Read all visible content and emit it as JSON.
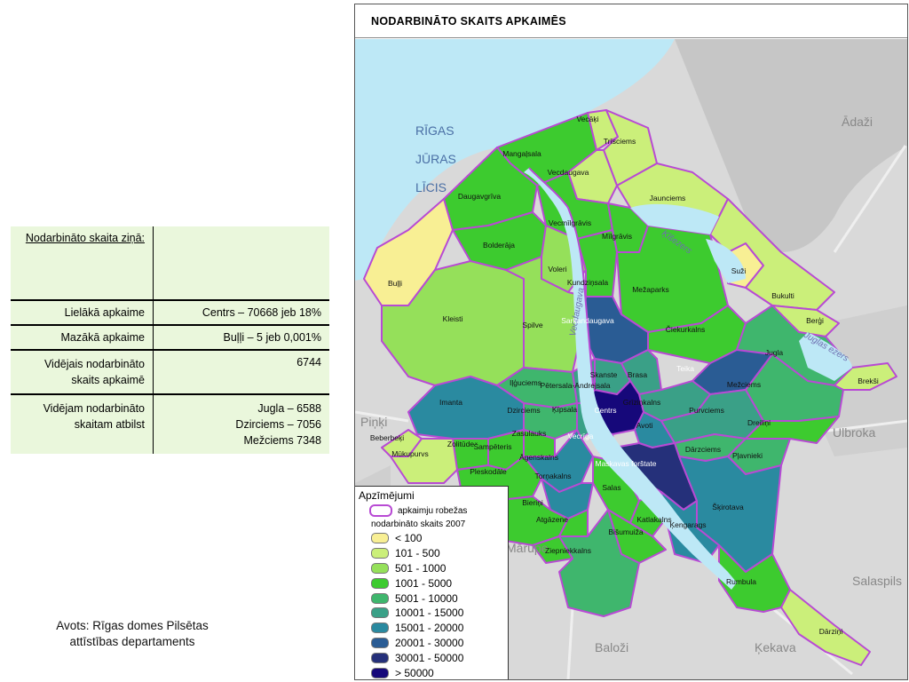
{
  "table": {
    "header_label": "Nodarbināto skaita ziņā:",
    "rows": [
      {
        "label": "Lielākā apkaime",
        "value": "Centrs – 70668 jeb 18%"
      },
      {
        "label": "Mazākā apkaime",
        "value": "Buļļi – 5 jeb 0,001%"
      },
      {
        "label": "Vidējais nodarbināto skaits apkaimē",
        "value": "6744"
      },
      {
        "label": "Vidējam nodarbināto skaitam atbilst",
        "values": [
          "Jugla – 6588",
          "Dzirciems – 7056",
          "Mežciems 7348"
        ]
      }
    ]
  },
  "source_note": "Avots: Rīgas domes Pilsētas attīstības departaments",
  "map": {
    "title": "NODARBINĀTO SKAITS APKAIMĒS",
    "water_label": [
      "RĪGAS",
      "JŪRAS",
      "LĪCIS"
    ],
    "river_labels": [
      "Vecdaugava",
      "Ķīšezers",
      "Juglas ezers"
    ],
    "place_labels": [
      "Ādaži",
      "Piņķi",
      "Ulbroka",
      "Salaspils",
      "Ķekava",
      "Baloži",
      "Mārupe"
    ],
    "district_labels": [
      {
        "name": "Vecāķi",
        "class": 1
      },
      {
        "name": "Mangaļsala",
        "class": 3
      },
      {
        "name": "Trīsciems",
        "class": 1
      },
      {
        "name": "Vecdaugava",
        "class": 1
      },
      {
        "name": "Daugavgrīva",
        "class": 3
      },
      {
        "name": "Jaunciems",
        "class": 1
      },
      {
        "name": "Vecmīlgrāvis",
        "class": 3
      },
      {
        "name": "Mīlgrāvis",
        "class": 3
      },
      {
        "name": "Bolderāja",
        "class": 3
      },
      {
        "name": "Buļļi",
        "class": 0
      },
      {
        "name": "Voleri",
        "class": 2
      },
      {
        "name": "Kundziņsala",
        "class": 3
      },
      {
        "name": "Mežaparks",
        "class": 3
      },
      {
        "name": "Suži",
        "class": 0
      },
      {
        "name": "Bukulti",
        "class": 1
      },
      {
        "name": "Kleisti",
        "class": 2
      },
      {
        "name": "Spilve",
        "class": 2
      },
      {
        "name": "Sarkandaugava",
        "class": 7
      },
      {
        "name": "Čiekurkalns",
        "class": 3
      },
      {
        "name": "Berģi",
        "class": 1
      },
      {
        "name": "Jugla",
        "class": 4
      },
      {
        "name": "Teika",
        "class": 7
      },
      {
        "name": "Brekši",
        "class": 1
      },
      {
        "name": "Skanste",
        "class": 5
      },
      {
        "name": "Brasa",
        "class": 5
      },
      {
        "name": "Iļģuciems",
        "class": 4
      },
      {
        "name": "Pētersala-Andrejsala",
        "class": 5
      },
      {
        "name": "Mežciems",
        "class": 4
      },
      {
        "name": "Imanta",
        "class": 6
      },
      {
        "name": "Grīziņkalns",
        "class": 5
      },
      {
        "name": "Dzirciems",
        "class": 4
      },
      {
        "name": "Ķīpsala",
        "class": 5
      },
      {
        "name": "Centrs",
        "class": 9
      },
      {
        "name": "Avoti",
        "class": 6
      },
      {
        "name": "Purvciems",
        "class": 5
      },
      {
        "name": "Dreiliņi",
        "class": 3
      },
      {
        "name": "Zasulauks",
        "class": 3
      },
      {
        "name": "Vecrīga",
        "class": 8
      },
      {
        "name": "Beberbeķi",
        "class": 1
      },
      {
        "name": "Zolitūde",
        "class": 3
      },
      {
        "name": "Šampēteris",
        "class": 3
      },
      {
        "name": "Āgenskalns",
        "class": 6
      },
      {
        "name": "Dārzciems",
        "class": 4
      },
      {
        "name": "Pļavnieki",
        "class": 4
      },
      {
        "name": "Mūkupurvs",
        "class": 1
      },
      {
        "name": "Pleskodāle",
        "class": 3
      },
      {
        "name": "Torņakalns",
        "class": 6
      },
      {
        "name": "Maskavas forštate",
        "class": 8
      },
      {
        "name": "Salas",
        "class": 3
      },
      {
        "name": "Šķirotava",
        "class": 6
      },
      {
        "name": "Bieriņi",
        "class": 3
      },
      {
        "name": "Atgāzene",
        "class": 3
      },
      {
        "name": "Katlakalns",
        "class": 3
      },
      {
        "name": "Ķengarags",
        "class": 6
      },
      {
        "name": "Bišumuiža",
        "class": 3
      },
      {
        "name": "Ziepniekkalns",
        "class": 4
      },
      {
        "name": "Rumbula",
        "class": 3
      },
      {
        "name": "Dārziņi",
        "class": 1
      }
    ]
  },
  "legend": {
    "title": "Apzīmējumi",
    "boundary_label": "apkaimju robežas",
    "subtitle": "nodarbināto skaits 2007",
    "classes": [
      {
        "label": "< 100",
        "color": "#f8ef94"
      },
      {
        "label": "101 - 500",
        "color": "#cbef7a"
      },
      {
        "label": "501 - 1000",
        "color": "#95e05a"
      },
      {
        "label": "1001 - 5000",
        "color": "#3dcb2f"
      },
      {
        "label": "5001 - 10000",
        "color": "#3fb66d"
      },
      {
        "label": "10001 - 15000",
        "color": "#3aa087"
      },
      {
        "label": "15001 - 20000",
        "color": "#2a8aa0"
      },
      {
        "label": "20001 - 30000",
        "color": "#2a5c94"
      },
      {
        "label": "30001 - 50000",
        "color": "#25307a"
      },
      {
        "label": "> 50000",
        "color": "#16087a"
      }
    ]
  },
  "colors": {
    "boundary": "#b84ad4",
    "sea": "#bde8f6",
    "land": "#d9d9d9",
    "table_fill": "#eaf7dc"
  }
}
